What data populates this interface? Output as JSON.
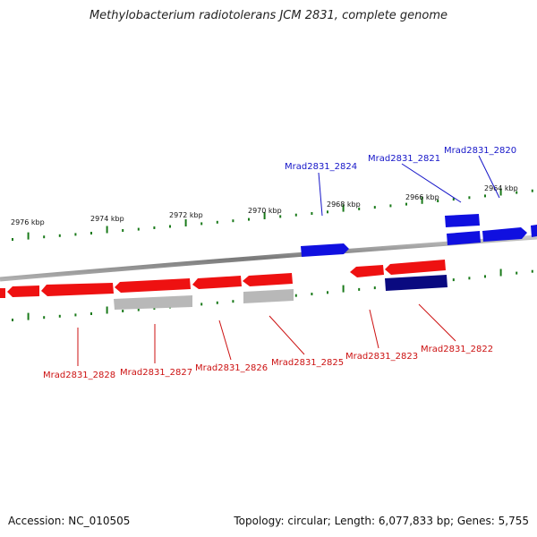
{
  "title": "Methylobacterium radiotolerans JCM 2831, complete genome",
  "footer": {
    "accession": "Accession: NC_010505",
    "summary": "Topology: circular; Length: 6,077,833 bp; Genes: 5,755"
  },
  "colors": {
    "plus_strand": "#1010e0",
    "minus_strand": "#ee1111",
    "pseudo_gene": "#b8b8b8",
    "dark_gene": "#0a0a80",
    "backbone": "#888888",
    "tick": "#1a7a1a",
    "label_plus": "#1515c8",
    "label_minus": "#cc1111"
  },
  "scale": {
    "unit": "kbp",
    "labels": [
      "2976 kbp",
      "2974 kbp",
      "2972 kbp",
      "2970 kbp",
      "2968 kbp",
      "2966 kbp",
      "2964 kbp"
    ]
  },
  "genes_plus": [
    {
      "name": "Mrad2831_2824"
    },
    {
      "name": "Mrad2831_2821"
    },
    {
      "name": "Mrad2831_2820"
    }
  ],
  "genes_minus": [
    {
      "name": "Mrad2831_2828"
    },
    {
      "name": "Mrad2831_2827"
    },
    {
      "name": "Mrad2831_2826"
    },
    {
      "name": "Mrad2831_2825"
    },
    {
      "name": "Mrad2831_2823"
    },
    {
      "name": "Mrad2831_2822"
    }
  ]
}
